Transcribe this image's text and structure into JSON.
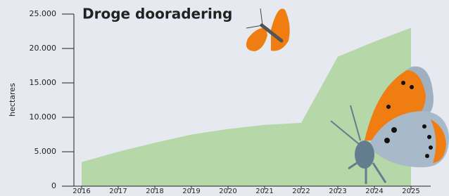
{
  "chart_data": {
    "type": "area",
    "title": "Droge dooradering",
    "y_label": "hectares",
    "categories": [
      "2016",
      "2017",
      "2018",
      "2019",
      "2020",
      "2021",
      "2022",
      "2023",
      "2024",
      "2025"
    ],
    "values": [
      3500,
      5000,
      6300,
      7500,
      8300,
      8900,
      9200,
      18800,
      21000,
      23000
    ],
    "color": "#b6d7a8",
    "ylim": [
      0,
      25000
    ],
    "yticks": [
      0,
      {
        "value": 5000,
        "label": "5.000"
      },
      {
        "value": 10000,
        "label": "10.000"
      },
      {
        "value": 15000,
        "label": "15.000"
      },
      {
        "value": 20000,
        "label": "20.000"
      },
      {
        "value": 25000,
        "label": "25.000"
      }
    ]
  }
}
